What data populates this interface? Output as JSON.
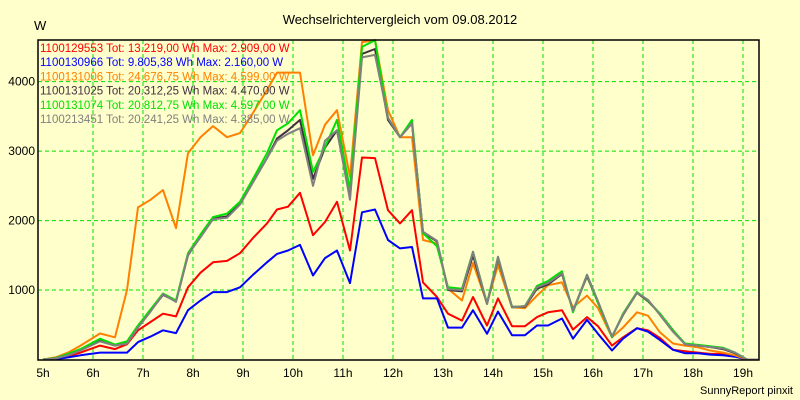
{
  "chart_data": {
    "type": "line",
    "title": "Wechselrichtervergleich vom 09.08.2012",
    "ylabel": "W",
    "xlabel": "",
    "footer": "SunnyReport pinxit",
    "xlim": [
      4.9,
      19.32
    ],
    "ylim": [
      0,
      4600
    ],
    "grid": true,
    "legend_placement": "top-left",
    "x_ticks": [
      5,
      6,
      7,
      8,
      9,
      10,
      11,
      12,
      13,
      14,
      15,
      16,
      17,
      18,
      19
    ],
    "x_tick_labels": [
      "5h",
      "6h",
      "7h",
      "8h",
      "9h",
      "10h",
      "11h",
      "12h",
      "13h",
      "14h",
      "15h",
      "16h",
      "17h",
      "18h",
      "19h"
    ],
    "y_ticks": [
      1000,
      2000,
      3000,
      4000
    ],
    "y_tick_labels": [
      "1000",
      "2000",
      "3000",
      "4000"
    ],
    "x": [
      5.0,
      5.25,
      5.5,
      5.75,
      6.14,
      6.44,
      6.68,
      6.9,
      7.15,
      7.4,
      7.66,
      7.9,
      8.15,
      8.4,
      8.68,
      8.94,
      9.2,
      9.48,
      9.68,
      9.9,
      10.14,
      10.4,
      10.64,
      10.88,
      11.14,
      11.38,
      11.64,
      11.9,
      12.14,
      12.38,
      12.6,
      12.88,
      13.1,
      13.38,
      13.6,
      13.88,
      14.1,
      14.38,
      14.64,
      14.88,
      15.1,
      15.38,
      15.6,
      15.88,
      16.1,
      16.38,
      16.6,
      16.88,
      17.1,
      17.34,
      17.6,
      17.84,
      18.1,
      18.34,
      18.6,
      18.84,
      19.08,
      19.3
    ],
    "series": [
      {
        "name": "1100129553",
        "legend": "1100129553 Tot: 13.219,00 Wh Max: 2.909,00 W",
        "color": "#ff0000",
        "values": [
          0,
          10,
          50,
          100,
          200,
          150,
          220,
          420,
          540,
          660,
          620,
          1040,
          1250,
          1400,
          1420,
          1530,
          1750,
          1960,
          2160,
          2200,
          2400,
          1790,
          1980,
          2270,
          1570,
          2909,
          2900,
          2150,
          1960,
          2150,
          1110,
          900,
          660,
          560,
          900,
          490,
          880,
          480,
          480,
          610,
          680,
          710,
          430,
          610,
          480,
          200,
          320,
          450,
          420,
          310,
          140,
          120,
          100,
          80,
          80,
          50,
          0,
          0
        ]
      },
      {
        "name": "1100130966",
        "legend": "1100130966 Tot: 9.805,38 Wh Max: 2.160,00 W",
        "color": "#0000ff",
        "values": [
          0,
          5,
          30,
          60,
          100,
          100,
          100,
          250,
          330,
          420,
          380,
          710,
          850,
          970,
          970,
          1040,
          1220,
          1400,
          1520,
          1570,
          1650,
          1210,
          1460,
          1570,
          1100,
          2120,
          2160,
          1720,
          1600,
          1620,
          880,
          880,
          460,
          460,
          710,
          370,
          690,
          350,
          350,
          490,
          490,
          590,
          300,
          570,
          370,
          130,
          300,
          450,
          400,
          280,
          140,
          90,
          90,
          70,
          60,
          40,
          0,
          0
        ]
      },
      {
        "name": "1100131006",
        "legend": "1100131006 Tot: 24.676,75 Wh Max: 4.599,00 W",
        "color": "#ff8000",
        "values": [
          0,
          30,
          100,
          200,
          375,
          320,
          1000,
          2190,
          2300,
          2440,
          1890,
          2970,
          3200,
          3360,
          3200,
          3260,
          3550,
          3880,
          4130,
          4130,
          4130,
          2940,
          3380,
          3590,
          2630,
          4570,
          4599,
          3590,
          3200,
          3200,
          1720,
          1670,
          1020,
          850,
          1390,
          810,
          1360,
          750,
          740,
          920,
          1070,
          1110,
          750,
          920,
          740,
          320,
          460,
          680,
          630,
          390,
          230,
          200,
          175,
          130,
          100,
          60,
          0,
          0
        ]
      },
      {
        "name": "1100131025",
        "legend": "1100131025 Tot: 20.312,25 Wh Max: 4.470,00 W",
        "color": "#403040",
        "values": [
          0,
          20,
          70,
          140,
          270,
          200,
          240,
          470,
          700,
          930,
          840,
          1500,
          1780,
          2030,
          2060,
          2240,
          2560,
          2900,
          3180,
          3300,
          3450,
          2600,
          3050,
          3300,
          2350,
          4400,
          4470,
          3450,
          3200,
          3400,
          1830,
          1700,
          1000,
          980,
          1500,
          800,
          1450,
          760,
          760,
          1020,
          1080,
          1230,
          700,
          1200,
          820,
          330,
          640,
          960,
          840,
          660,
          420,
          220,
          200,
          180,
          150,
          90,
          0,
          0
        ]
      },
      {
        "name": "1100131074",
        "legend": "1100131074 Tot: 20.812,75 Wh Max: 4.597,00 W",
        "color": "#00e000",
        "values": [
          0,
          20,
          80,
          150,
          300,
          215,
          260,
          490,
          720,
          950,
          850,
          1530,
          1800,
          2050,
          2100,
          2270,
          2600,
          2970,
          3300,
          3400,
          3590,
          2700,
          3060,
          3450,
          2440,
          4500,
          4597,
          3480,
          3200,
          3450,
          1820,
          1630,
          1040,
          1020,
          1550,
          810,
          1470,
          750,
          770,
          1060,
          1130,
          1270,
          680,
          1220,
          810,
          320,
          660,
          970,
          850,
          660,
          420,
          230,
          210,
          190,
          170,
          100,
          0,
          0
        ]
      },
      {
        "name": "1100213451",
        "legend": "1100213451 Tot: 20.241,25 Wh Max: 4.385,00 W",
        "color": "#808080",
        "values": [
          0,
          15,
          60,
          130,
          260,
          200,
          230,
          460,
          690,
          940,
          830,
          1510,
          1760,
          2020,
          2040,
          2230,
          2550,
          2900,
          3150,
          3250,
          3330,
          2500,
          3150,
          3300,
          2300,
          4350,
          4385,
          3480,
          3200,
          3400,
          1840,
          1710,
          1010,
          1000,
          1550,
          800,
          1480,
          750,
          770,
          1040,
          1100,
          1240,
          700,
          1220,
          840,
          330,
          650,
          960,
          860,
          640,
          400,
          220,
          200,
          180,
          160,
          100,
          0,
          0
        ]
      }
    ]
  }
}
